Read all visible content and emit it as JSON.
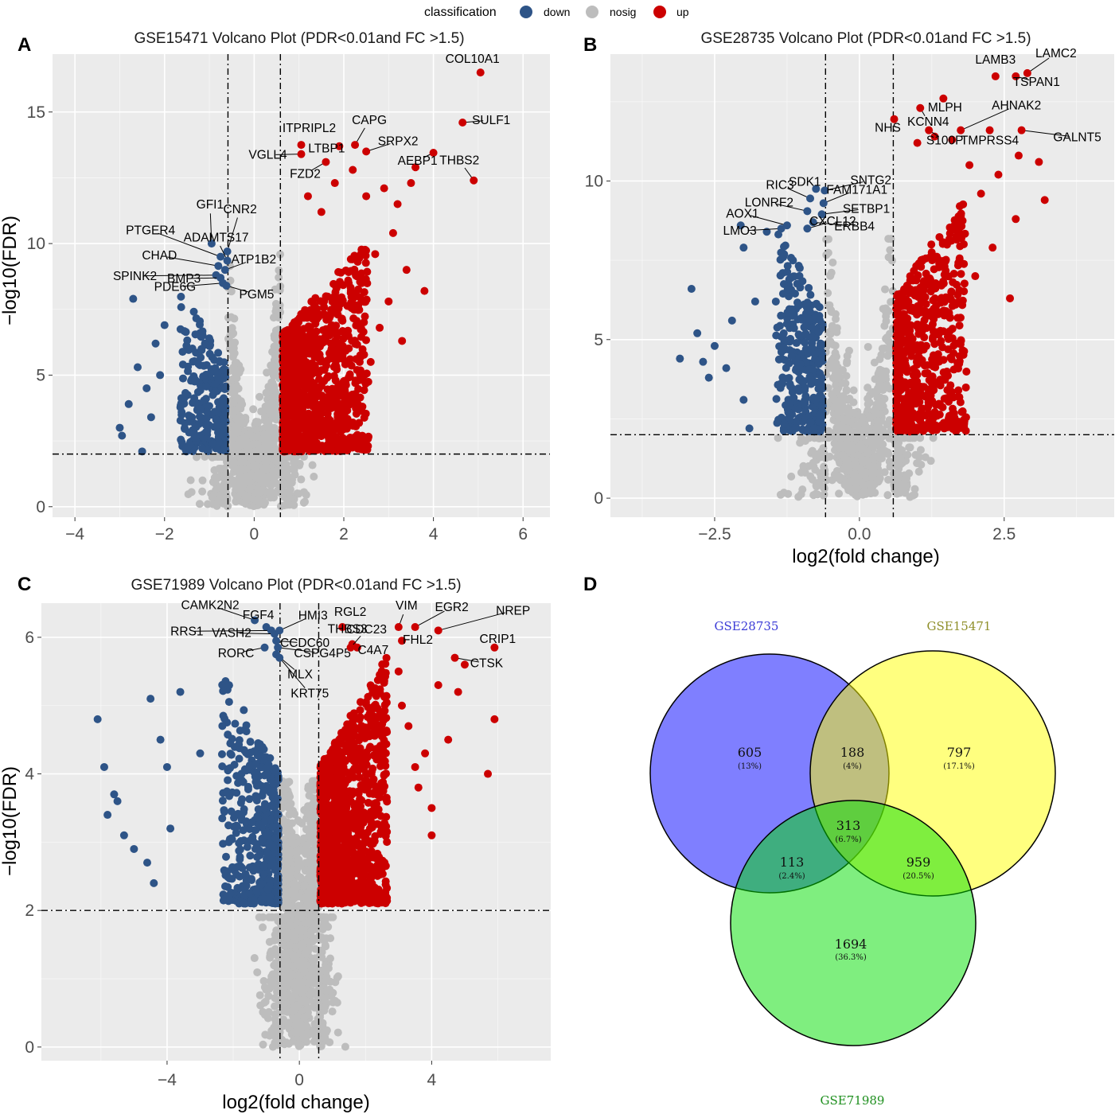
{
  "legend": {
    "title": "classification",
    "items": [
      {
        "label": "down",
        "color": "#2e5487"
      },
      {
        "label": "nosig",
        "color": "#bdbdbd"
      },
      {
        "label": "up",
        "color": "#cc0000"
      }
    ]
  },
  "panels": {
    "A": {
      "letter": "A"
    },
    "B": {
      "letter": "B"
    },
    "C": {
      "letter": "C"
    },
    "D": {
      "letter": "D"
    }
  },
  "chart_data": [
    {
      "id": "A",
      "type": "scatter",
      "title": "GSE15471 Volcano Plot (PDR<0.01and FC >1.5)",
      "xlabel": "",
      "ylabel": "−log10(FDR)",
      "xlim": [
        -4.5,
        6.6
      ],
      "ylim": [
        -0.4,
        17.2
      ],
      "xticks": [
        -4,
        -2,
        0,
        2,
        4,
        6
      ],
      "yticks": [
        0,
        5,
        10,
        15
      ],
      "thresholds": {
        "x": [
          -0.585,
          0.585
        ],
        "y": 2
      },
      "cloud": {
        "up": {
          "n": 1050,
          "xmax": 2.5,
          "ymax": 10
        },
        "down": {
          "n": 260,
          "xmin": -1.6,
          "ymax": 8
        },
        "nosig_n": 1100
      },
      "extra_points": [
        {
          "x": 3.2,
          "y": 11.5,
          "c": "up"
        },
        {
          "x": 3.6,
          "y": 12.9,
          "c": "up"
        },
        {
          "x": 3.5,
          "y": 12.3,
          "c": "up"
        },
        {
          "x": 2.9,
          "y": 12.1,
          "c": "up"
        },
        {
          "x": 2.5,
          "y": 11.8,
          "c": "up"
        },
        {
          "x": 3.1,
          "y": 10.4,
          "c": "up"
        },
        {
          "x": 2.7,
          "y": 9.6,
          "c": "up"
        },
        {
          "x": 3.4,
          "y": 9.0,
          "c": "up"
        },
        {
          "x": 2.4,
          "y": 8.5,
          "c": "up"
        },
        {
          "x": 3.0,
          "y": 7.8,
          "c": "up"
        },
        {
          "x": 2.8,
          "y": 6.8,
          "c": "up"
        },
        {
          "x": 3.3,
          "y": 6.3,
          "c": "up"
        },
        {
          "x": 2.6,
          "y": 5.5,
          "c": "up"
        },
        {
          "x": 3.8,
          "y": 8.2,
          "c": "up"
        },
        {
          "x": 2.2,
          "y": 12.8,
          "c": "up"
        },
        {
          "x": 1.8,
          "y": 12.3,
          "c": "up"
        },
        {
          "x": 1.2,
          "y": 11.8,
          "c": "up"
        },
        {
          "x": 1.5,
          "y": 11.2,
          "c": "up"
        },
        {
          "x": -2.7,
          "y": 7.9,
          "c": "down"
        },
        {
          "x": -3.0,
          "y": 3.0,
          "c": "down"
        },
        {
          "x": -2.8,
          "y": 3.9,
          "c": "down"
        },
        {
          "x": -2.6,
          "y": 5.3,
          "c": "down"
        },
        {
          "x": -2.4,
          "y": 4.5,
          "c": "down"
        },
        {
          "x": -2.2,
          "y": 6.2,
          "c": "down"
        },
        {
          "x": -2.5,
          "y": 2.1,
          "c": "down"
        },
        {
          "x": -2.0,
          "y": 6.9,
          "c": "down"
        },
        {
          "x": -2.3,
          "y": 3.4,
          "c": "down"
        },
        {
          "x": -2.95,
          "y": 2.7,
          "c": "down"
        },
        {
          "x": -2.1,
          "y": 5.0,
          "c": "down"
        }
      ],
      "genes": [
        {
          "name": "COL10A1",
          "x": 5.05,
          "y": 16.5,
          "c": "up"
        },
        {
          "name": "SULF1",
          "x": 4.65,
          "y": 14.6,
          "c": "up"
        },
        {
          "name": "THBS2",
          "x": 4.9,
          "y": 12.4,
          "c": "up"
        },
        {
          "name": "AEBP1",
          "x": 4.0,
          "y": 13.45,
          "c": "up"
        },
        {
          "name": "SRPX2",
          "x": 2.5,
          "y": 13.5,
          "c": "up"
        },
        {
          "name": "CAPG",
          "x": 2.25,
          "y": 13.75,
          "c": "up"
        },
        {
          "name": "ITPRIPL2",
          "x": 1.05,
          "y": 13.75,
          "c": "up"
        },
        {
          "name": "LTBP1",
          "x": 1.9,
          "y": 13.7,
          "c": "up"
        },
        {
          "name": "VGLL4",
          "x": 1.05,
          "y": 13.4,
          "c": "up"
        },
        {
          "name": "FZD2",
          "x": 1.6,
          "y": 13.1,
          "c": "up"
        },
        {
          "name": "GFI1",
          "x": -0.95,
          "y": 10.0,
          "c": "down"
        },
        {
          "name": "CNR2",
          "x": -0.6,
          "y": 9.7,
          "c": "down"
        },
        {
          "name": "PTGER4",
          "x": -0.75,
          "y": 9.5,
          "c": "down"
        },
        {
          "name": "ADAMTS17",
          "x": -0.6,
          "y": 9.35,
          "c": "down"
        },
        {
          "name": "CHAD",
          "x": -0.8,
          "y": 9.15,
          "c": "down"
        },
        {
          "name": "ATP1B2",
          "x": -0.65,
          "y": 9.0,
          "c": "down"
        },
        {
          "name": "SPINK2",
          "x": -0.85,
          "y": 8.8,
          "c": "down"
        },
        {
          "name": "BMP3",
          "x": -0.75,
          "y": 8.7,
          "c": "down"
        },
        {
          "name": "PDE6G",
          "x": -0.7,
          "y": 8.5,
          "c": "down"
        },
        {
          "name": "PGM5",
          "x": -0.62,
          "y": 8.4,
          "c": "down"
        }
      ]
    },
    {
      "id": "B",
      "type": "scatter",
      "title": "GSE28735 Volcano Plot (PDR<0.01and FC >1.5)",
      "xlabel": "log2(fold change)",
      "ylabel": "",
      "xlim": [
        -4.3,
        4.4
      ],
      "ylim": [
        -0.6,
        14.0
      ],
      "xticks": [
        -2.5,
        0.0,
        2.5
      ],
      "xtickLabels": [
        "−2.5",
        "0.0",
        "2.5"
      ],
      "yticks": [
        0,
        5,
        10
      ],
      "thresholds": {
        "x": [
          -0.585,
          0.585
        ],
        "y": 2
      },
      "cloud": {
        "up": {
          "n": 620,
          "xmax": 1.8,
          "ymax": 9.5
        },
        "down": {
          "n": 330,
          "xmin": -1.4,
          "ymax": 8.5
        },
        "nosig_n": 900
      },
      "extra_points": [
        {
          "x": 3.2,
          "y": 9.4,
          "c": "up"
        },
        {
          "x": 3.1,
          "y": 10.6,
          "c": "up"
        },
        {
          "x": 2.4,
          "y": 10.2,
          "c": "up"
        },
        {
          "x": 2.7,
          "y": 8.8,
          "c": "up"
        },
        {
          "x": 2.1,
          "y": 9.6,
          "c": "up"
        },
        {
          "x": 2.3,
          "y": 7.9,
          "c": "up"
        },
        {
          "x": 2.0,
          "y": 7.0,
          "c": "up"
        },
        {
          "x": 2.6,
          "y": 6.3,
          "c": "up"
        },
        {
          "x": 1.9,
          "y": 10.5,
          "c": "up"
        },
        {
          "x": 2.75,
          "y": 10.8,
          "c": "up"
        },
        {
          "x": 1.6,
          "y": 11.3,
          "c": "up"
        },
        {
          "x": 1.3,
          "y": 11.4,
          "c": "up"
        },
        {
          "x": 1.0,
          "y": 11.2,
          "c": "up"
        },
        {
          "x": -2.9,
          "y": 6.6,
          "c": "down"
        },
        {
          "x": -3.1,
          "y": 4.4,
          "c": "down"
        },
        {
          "x": -2.8,
          "y": 5.2,
          "c": "down"
        },
        {
          "x": -2.5,
          "y": 4.8,
          "c": "down"
        },
        {
          "x": -2.6,
          "y": 3.8,
          "c": "down"
        },
        {
          "x": -2.3,
          "y": 4.1,
          "c": "down"
        },
        {
          "x": -2.0,
          "y": 3.1,
          "c": "down"
        },
        {
          "x": -1.9,
          "y": 2.2,
          "c": "down"
        },
        {
          "x": -2.2,
          "y": 5.6,
          "c": "down"
        },
        {
          "x": -2.7,
          "y": 4.3,
          "c": "down"
        },
        {
          "x": -1.8,
          "y": 6.2,
          "c": "down"
        },
        {
          "x": -2.05,
          "y": 8.6,
          "c": "down"
        },
        {
          "x": -2.0,
          "y": 7.9,
          "c": "down"
        },
        {
          "x": -1.6,
          "y": 8.4,
          "c": "down"
        }
      ],
      "genes": [
        {
          "name": "LAMB3",
          "x": 2.35,
          "y": 13.3,
          "c": "up"
        },
        {
          "name": "LAMC2",
          "x": 2.9,
          "y": 13.4,
          "c": "up"
        },
        {
          "name": "TSPAN1",
          "x": 2.7,
          "y": 13.3,
          "c": "up"
        },
        {
          "name": "MLPH",
          "x": 1.45,
          "y": 12.6,
          "c": "up"
        },
        {
          "name": "KCNN4",
          "x": 1.05,
          "y": 12.3,
          "c": "up"
        },
        {
          "name": "AHNAK2",
          "x": 1.75,
          "y": 11.6,
          "c": "up"
        },
        {
          "name": "NHS",
          "x": 0.6,
          "y": 11.95,
          "c": "up"
        },
        {
          "name": "TMPRSS4",
          "x": 2.25,
          "y": 11.6,
          "c": "up"
        },
        {
          "name": "GALNT5",
          "x": 2.8,
          "y": 11.6,
          "c": "up"
        },
        {
          "name": "S100P",
          "x": 1.2,
          "y": 11.6,
          "c": "up"
        },
        {
          "name": "SDK1",
          "x": -0.75,
          "y": 9.75,
          "c": "down"
        },
        {
          "name": "SNTG2",
          "x": -0.6,
          "y": 9.7,
          "c": "down"
        },
        {
          "name": "RIC3",
          "x": -0.85,
          "y": 9.45,
          "c": "down"
        },
        {
          "name": "FAM171A1",
          "x": -0.62,
          "y": 9.3,
          "c": "down"
        },
        {
          "name": "LONRF2",
          "x": -0.9,
          "y": 9.05,
          "c": "down"
        },
        {
          "name": "SETBP1",
          "x": -0.65,
          "y": 8.95,
          "c": "down"
        },
        {
          "name": "AOX1",
          "x": -1.25,
          "y": 8.6,
          "c": "down"
        },
        {
          "name": "ERBB4",
          "x": -0.8,
          "y": 8.7,
          "c": "down"
        },
        {
          "name": "LMO3",
          "x": -1.35,
          "y": 8.5,
          "c": "down"
        },
        {
          "name": "CXCL12",
          "x": -0.9,
          "y": 8.5,
          "c": "down"
        }
      ]
    },
    {
      "id": "C",
      "type": "scatter",
      "title": "GSE71989 Volcano Plot (PDR<0.01and FC >1.5)",
      "xlabel": "log2(fold change)",
      "ylabel": "−log10(FDR)",
      "xlim": [
        -7.8,
        7.6
      ],
      "ylim": [
        -0.2,
        6.5
      ],
      "xticks": [
        -4,
        0,
        4
      ],
      "yticks": [
        0,
        2,
        4,
        6
      ],
      "thresholds": {
        "x": [
          -0.585,
          0.585
        ],
        "y": 2
      },
      "cloud": {
        "up": {
          "n": 1150,
          "xmax": 2.6,
          "ymax": 5.6
        },
        "down": {
          "n": 420,
          "xmin": -2.3,
          "ymax": 5.4
        },
        "nosig_n": 1300
      },
      "extra_points": [
        {
          "x": -6.1,
          "y": 4.8,
          "c": "down"
        },
        {
          "x": -5.9,
          "y": 4.1,
          "c": "down"
        },
        {
          "x": -5.6,
          "y": 3.7,
          "c": "down"
        },
        {
          "x": -5.8,
          "y": 3.4,
          "c": "down"
        },
        {
          "x": -5.3,
          "y": 3.1,
          "c": "down"
        },
        {
          "x": -5.0,
          "y": 2.9,
          "c": "down"
        },
        {
          "x": -4.6,
          "y": 2.7,
          "c": "down"
        },
        {
          "x": -4.5,
          "y": 5.1,
          "c": "down"
        },
        {
          "x": -3.6,
          "y": 5.2,
          "c": "down"
        },
        {
          "x": -4.2,
          "y": 4.5,
          "c": "down"
        },
        {
          "x": -4.4,
          "y": 2.4,
          "c": "down"
        },
        {
          "x": -3.9,
          "y": 3.2,
          "c": "down"
        },
        {
          "x": -5.5,
          "y": 3.6,
          "c": "down"
        },
        {
          "x": -4.0,
          "y": 4.1,
          "c": "down"
        },
        {
          "x": -3.0,
          "y": 4.3,
          "c": "down"
        },
        {
          "x": 5.9,
          "y": 4.8,
          "c": "up"
        },
        {
          "x": 5.7,
          "y": 4.0,
          "c": "up"
        },
        {
          "x": 5.0,
          "y": 5.6,
          "c": "up"
        },
        {
          "x": 4.8,
          "y": 5.2,
          "c": "up"
        },
        {
          "x": 4.5,
          "y": 4.5,
          "c": "up"
        },
        {
          "x": 4.0,
          "y": 3.1,
          "c": "up"
        },
        {
          "x": 4.0,
          "y": 3.5,
          "c": "up"
        },
        {
          "x": 3.6,
          "y": 3.8,
          "c": "up"
        },
        {
          "x": 3.3,
          "y": 4.7,
          "c": "up"
        },
        {
          "x": 3.1,
          "y": 5.0,
          "c": "up"
        },
        {
          "x": 3.8,
          "y": 4.3,
          "c": "up"
        },
        {
          "x": 4.2,
          "y": 5.3,
          "c": "up"
        },
        {
          "x": 3.0,
          "y": 5.5,
          "c": "up"
        },
        {
          "x": 3.5,
          "y": 4.1,
          "c": "up"
        }
      ],
      "genes": [
        {
          "name": "CAMK2N2",
          "x": -1.35,
          "y": 6.25,
          "c": "down"
        },
        {
          "name": "FGF4",
          "x": -1.0,
          "y": 6.15,
          "c": "down"
        },
        {
          "name": "RRS1",
          "x": -0.85,
          "y": 6.1,
          "c": "down"
        },
        {
          "name": "VASH2",
          "x": -0.75,
          "y": 6.05,
          "c": "down"
        },
        {
          "name": "HMI3",
          "x": -0.6,
          "y": 6.1,
          "c": "down"
        },
        {
          "name": "CCDC60",
          "x": -0.7,
          "y": 5.95,
          "c": "down"
        },
        {
          "name": "RORC",
          "x": -1.05,
          "y": 5.85,
          "c": "down"
        },
        {
          "name": "CSPG4P5",
          "x": -0.65,
          "y": 5.85,
          "c": "down"
        },
        {
          "name": "MLX",
          "x": -0.7,
          "y": 5.75,
          "c": "down"
        },
        {
          "name": "KRT75",
          "x": -0.6,
          "y": 5.7,
          "c": "down"
        },
        {
          "name": "RGL2",
          "x": 1.3,
          "y": 6.15,
          "c": "up"
        },
        {
          "name": "VIM",
          "x": 3.0,
          "y": 6.15,
          "c": "up"
        },
        {
          "name": "EGR2",
          "x": 3.5,
          "y": 6.15,
          "c": "up"
        },
        {
          "name": "NREP",
          "x": 4.2,
          "y": 6.1,
          "c": "up"
        },
        {
          "name": "THBS3",
          "x": 1.6,
          "y": 5.9,
          "c": "up"
        },
        {
          "name": "CDC23",
          "x": 1.55,
          "y": 5.85,
          "c": "up"
        },
        {
          "name": "FHL2",
          "x": 3.1,
          "y": 5.95,
          "c": "up"
        },
        {
          "name": "CRIP1",
          "x": 5.9,
          "y": 5.85,
          "c": "up"
        },
        {
          "name": "C4A7",
          "x": 1.75,
          "y": 5.85,
          "c": "up"
        },
        {
          "name": "CTSK",
          "x": 4.7,
          "y": 5.7,
          "c": "up"
        }
      ]
    },
    {
      "id": "D",
      "type": "venn",
      "sets": [
        {
          "name": "GSE28735",
          "color": "#0000ff",
          "textColor": "#3b3bd6"
        },
        {
          "name": "GSE15471",
          "color": "#ffff00",
          "textColor": "#8f8f2a"
        },
        {
          "name": "GSE71989",
          "color": "#00dd00",
          "textColor": "#1e8f1e"
        }
      ],
      "regions": [
        {
          "key": "only_28735",
          "count": "605",
          "pct": "(13%)"
        },
        {
          "key": "28735_15471",
          "count": "188",
          "pct": "(4%)"
        },
        {
          "key": "only_15471",
          "count": "797",
          "pct": "(17.1%)"
        },
        {
          "key": "all",
          "count": "313",
          "pct": "(6.7%)"
        },
        {
          "key": "28735_71989",
          "count": "113",
          "pct": "(2.4%)"
        },
        {
          "key": "15471_71989",
          "count": "959",
          "pct": "(20.5%)"
        },
        {
          "key": "only_71989",
          "count": "1694",
          "pct": "(36.3%)"
        }
      ]
    }
  ]
}
